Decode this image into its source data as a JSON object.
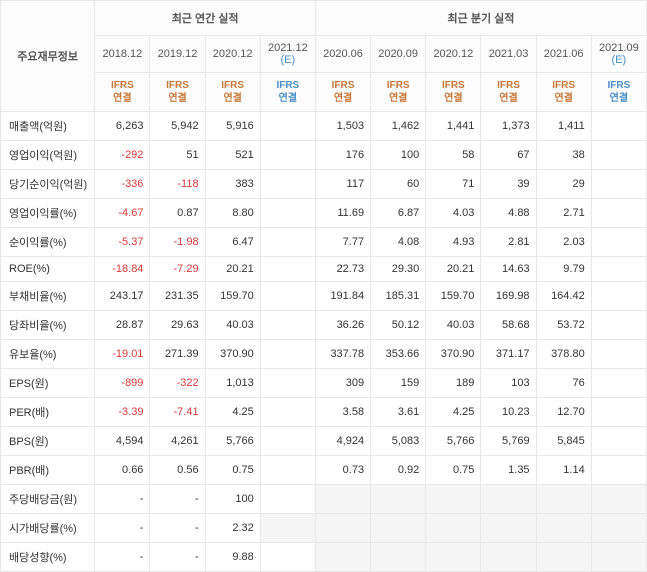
{
  "headers": {
    "main_info": "주요재무정보",
    "annual_title": "최근 연간 실적",
    "quarterly_title": "최근 분기 실적",
    "annual_periods": [
      "2018.12",
      "2019.12",
      "2020.12",
      "2021.12 (E)"
    ],
    "quarterly_periods": [
      "2020.06",
      "2020.09",
      "2020.12",
      "2021.03",
      "2021.06",
      "2021.09 (E)"
    ],
    "ifrs_label": "IFRS",
    "ifrs_sub": "연결",
    "estimate_suffix": "(E)"
  },
  "colors": {
    "negative": "#d83a3a",
    "ifrs": "#c77836",
    "estimate": "#4a8fc5",
    "border": "#e8e8e8",
    "header_bg": "#fcfcfc",
    "text": "#333333",
    "grey_cell": "#f5f5f5"
  },
  "rows": [
    {
      "label": "매출액(억원)",
      "annual": [
        "6,263",
        "5,942",
        "5,916",
        ""
      ],
      "quarterly": [
        "1,503",
        "1,462",
        "1,441",
        "1,373",
        "1,411",
        ""
      ],
      "section_start": true
    },
    {
      "label": "영업이익(억원)",
      "annual": [
        "-292",
        "51",
        "521",
        ""
      ],
      "quarterly": [
        "176",
        "100",
        "58",
        "67",
        "38",
        ""
      ]
    },
    {
      "label": "당기순이익(억원)",
      "annual": [
        "-336",
        "-118",
        "383",
        ""
      ],
      "quarterly": [
        "117",
        "60",
        "71",
        "39",
        "29",
        ""
      ]
    },
    {
      "label": "영업이익률(%)",
      "annual": [
        "-4.67",
        "0.87",
        "8.80",
        ""
      ],
      "quarterly": [
        "11.69",
        "6.87",
        "4.03",
        "4.88",
        "2.71",
        ""
      ],
      "section_start": true
    },
    {
      "label": "순이익률(%)",
      "annual": [
        "-5.37",
        "-1.98",
        "6.47",
        ""
      ],
      "quarterly": [
        "7.77",
        "4.08",
        "4.93",
        "2.81",
        "2.03",
        ""
      ]
    },
    {
      "label": "ROE(%)",
      "annual": [
        "-18.84",
        "-7.29",
        "20.21",
        ""
      ],
      "quarterly": [
        "22.73",
        "29.30",
        "20.21",
        "14.63",
        "9.79",
        ""
      ]
    },
    {
      "label": "부채비율(%)",
      "annual": [
        "243.17",
        "231.35",
        "159.70",
        ""
      ],
      "quarterly": [
        "191.84",
        "185.31",
        "159.70",
        "169.98",
        "164.42",
        ""
      ],
      "section_start": true
    },
    {
      "label": "당좌비율(%)",
      "annual": [
        "28.87",
        "29.63",
        "40.03",
        ""
      ],
      "quarterly": [
        "36.26",
        "50.12",
        "40.03",
        "58.68",
        "53.72",
        ""
      ]
    },
    {
      "label": "유보율(%)",
      "annual": [
        "-19.01",
        "271.39",
        "370.90",
        ""
      ],
      "quarterly": [
        "337.78",
        "353.66",
        "370.90",
        "371.17",
        "378.80",
        ""
      ]
    },
    {
      "label": "EPS(원)",
      "annual": [
        "-899",
        "-322",
        "1,013",
        ""
      ],
      "quarterly": [
        "309",
        "159",
        "189",
        "103",
        "76",
        ""
      ],
      "section_start": true
    },
    {
      "label": "PER(배)",
      "annual": [
        "-3.39",
        "-7.41",
        "4.25",
        ""
      ],
      "quarterly": [
        "3.58",
        "3.61",
        "4.25",
        "10.23",
        "12.70",
        ""
      ]
    },
    {
      "label": "BPS(원)",
      "annual": [
        "4,594",
        "4,261",
        "5,766",
        ""
      ],
      "quarterly": [
        "4,924",
        "5,083",
        "5,766",
        "5,769",
        "5,845",
        ""
      ]
    },
    {
      "label": "PBR(배)",
      "annual": [
        "0.66",
        "0.56",
        "0.75",
        ""
      ],
      "quarterly": [
        "0.73",
        "0.92",
        "0.75",
        "1.35",
        "1.14",
        ""
      ]
    },
    {
      "label": "주당배당금(원)",
      "annual": [
        "-",
        "-",
        "100",
        ""
      ],
      "quarterly_grey": true,
      "section_start": true
    },
    {
      "label": "시가배당률(%)",
      "annual": [
        "-",
        "-",
        "2.32",
        ""
      ],
      "quarterly_grey": true,
      "no_est": true
    },
    {
      "label": "배당성향(%)",
      "annual": [
        "-",
        "-",
        "9.88",
        ""
      ],
      "quarterly_grey": true
    }
  ]
}
